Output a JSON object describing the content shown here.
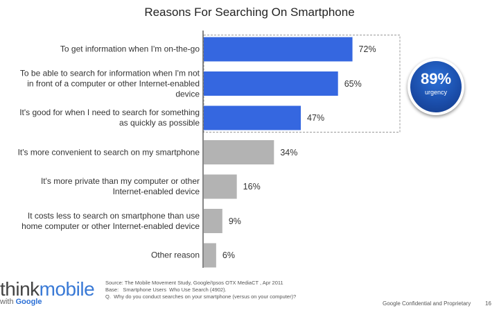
{
  "chart_data": {
    "type": "bar",
    "orientation": "horizontal",
    "title": "Reasons For Searching On Smartphone",
    "categories": [
      "To get information when I'm on-the-go",
      "To be able to search for information when I'm not\nin front of a computer or other Internet-enabled\ndevice",
      "It's good for when I need to search for something\nas quickly as possible",
      "It's more convenient to search on my smartphone",
      "It's more private than my computer or other\nInternet-enabled device",
      "It costs less to search on smartphone than use\nhome computer or other Internet-enabled device",
      "Other reason"
    ],
    "values": [
      72,
      65,
      47,
      34,
      16,
      9,
      6
    ],
    "value_labels": [
      "72%",
      "65%",
      "47%",
      "34%",
      "16%",
      "9%",
      "6%"
    ],
    "xlim": [
      0,
      100
    ],
    "grid": false,
    "highlighted_count": 3,
    "colors": {
      "highlight": "#3567e0",
      "normal": "#b3b3b3",
      "axis": "#444444",
      "dashed_box": "#999999"
    }
  },
  "badge": {
    "value": "89%",
    "label": "urgency"
  },
  "logo": {
    "think": "think",
    "mobile": "mobile",
    "with": "with ",
    "google": "Google"
  },
  "source_notes": {
    "line1": "Source: The Mobile Movement Study, Google/Ipsos OTX MediaCT , Apr 2011",
    "line2": "Base:   Smartphone Users  Who Use Search (4902).",
    "line3": "Q.  Why do you conduct searches on your smartphone (versus on your computer)?"
  },
  "footer": {
    "confidential": "Google Confidential and Proprietary",
    "page_number": "16"
  }
}
